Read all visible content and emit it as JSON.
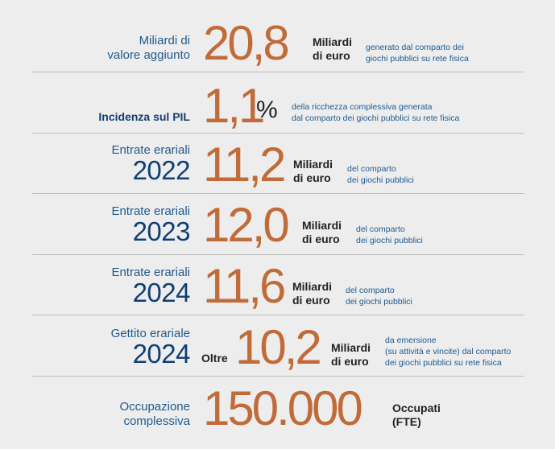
{
  "rows": [
    {
      "label_line1": "Miliardi di",
      "label_line2": "valore aggiunto",
      "value": "20,8",
      "unit_line1": "Miliardi",
      "unit_line2": "di euro",
      "desc_line1": "generato dal comparto dei",
      "desc_line2": "giochi pubblici su rete fisica"
    },
    {
      "label": "Incidenza sul PIL",
      "value": "1,1",
      "unit": "%",
      "desc_line1": "della ricchezza complessiva generata",
      "desc_line2": "dal comparto dei giochi pubblici su rete fisica"
    },
    {
      "label_line1": "Entrate erariali",
      "year": "2022",
      "value": "11,2",
      "unit_line1": "Miliardi",
      "unit_line2": "di euro",
      "desc_line1": "del comparto",
      "desc_line2": "dei giochi pubblici"
    },
    {
      "label_line1": "Entrate erariali",
      "year": "2023",
      "value": "12,0",
      "unit_line1": "Miliardi",
      "unit_line2": "di euro",
      "desc_line1": "del comparto",
      "desc_line2": "dei giochi pubblici"
    },
    {
      "label_line1": "Entrate erariali",
      "year": "2024",
      "value": "11,6",
      "unit_line1": "Miliardi",
      "unit_line2": "di euro",
      "desc_line1": "del comparto",
      "desc_line2": "dei giochi pubblici"
    },
    {
      "label_line1": "Gettito erariale",
      "year": "2024",
      "prefix": "Oltre",
      "value": "10,2",
      "unit_line1": "Miliardi",
      "unit_line2": "di euro",
      "desc_line1": "da emersione",
      "desc_line2": "(su attività e vincite) dal comparto",
      "desc_line3": "dei giochi pubblici su rete fisica"
    },
    {
      "label_line1": "Occupazione",
      "label_line2": "complessiva",
      "value": "150.000",
      "unit_line1": "Occupati",
      "unit_line2": "(FTE)"
    }
  ],
  "colors": {
    "background": "#ededed",
    "accent_number": "#c06b38",
    "label_blue": "#1f5a8f",
    "year_blue": "#0f3f74",
    "divider": "#bdbdbd"
  }
}
